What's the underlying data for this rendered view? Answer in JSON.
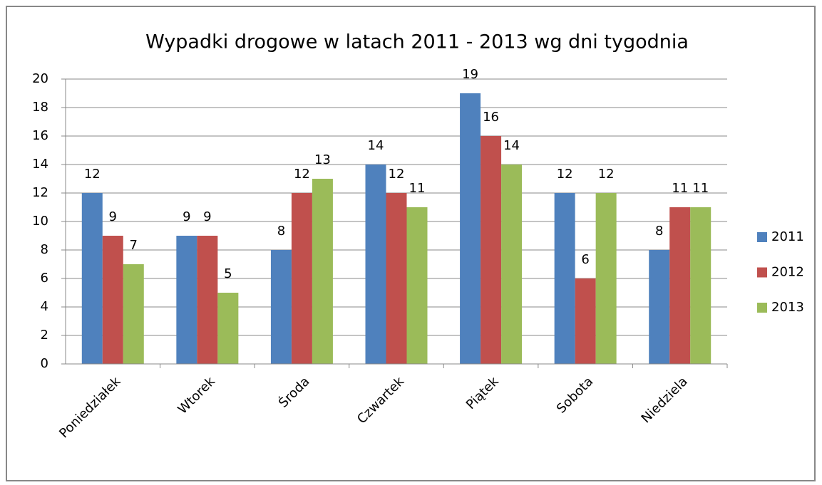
{
  "chart_data": {
    "type": "bar",
    "title": "Wypadki drogowe w latach 2011 - 2013 wg dni tygodnia",
    "categories": [
      "Poniedziałek",
      "Wtorek",
      "Środa",
      "Czwartek",
      "Piątek",
      "Sobota",
      "Niedziela"
    ],
    "series": [
      {
        "name": "2011",
        "color": "#4f81bd",
        "values": [
          12,
          9,
          8,
          14,
          19,
          12,
          8
        ]
      },
      {
        "name": "2012",
        "color": "#c0504d",
        "values": [
          9,
          9,
          12,
          12,
          16,
          6,
          11
        ]
      },
      {
        "name": "2013",
        "color": "#9bbb59",
        "values": [
          7,
          5,
          13,
          11,
          14,
          12,
          11
        ]
      }
    ],
    "ylim": [
      0,
      20
    ],
    "yticks": [
      0,
      2,
      4,
      6,
      8,
      10,
      12,
      14,
      16,
      18,
      20
    ],
    "grid": true,
    "legend": "right"
  }
}
